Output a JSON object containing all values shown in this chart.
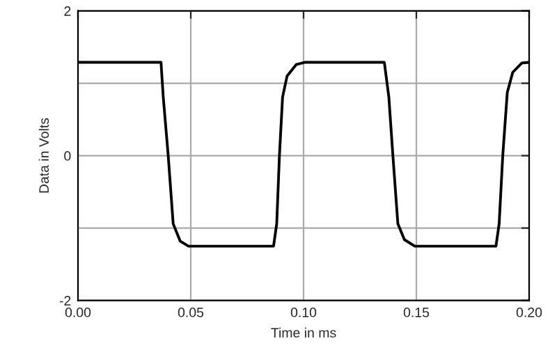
{
  "chart_data": {
    "type": "line",
    "xlabel": "Time in ms",
    "ylabel": "Data in Volts",
    "xlim": [
      0,
      0.2
    ],
    "ylim": [
      -2,
      2
    ],
    "xticks": [
      {
        "value": 0,
        "label": "0.00"
      },
      {
        "value": 0.05,
        "label": "0.05"
      },
      {
        "value": 0.1,
        "label": "0.10"
      },
      {
        "value": 0.15,
        "label": "0.15"
      },
      {
        "value": 0.2,
        "label": "0.20"
      }
    ],
    "yticks": [
      -2,
      {
        "value": -1,
        "label": null
      },
      0,
      {
        "value": 1,
        "label": null
      },
      2
    ],
    "grid": true,
    "marker": "none",
    "line_style": "solid",
    "series": [
      {
        "color": "#000000",
        "x": [
          0,
          0.0368,
          0.0378,
          0.04,
          0.0422,
          0.0453,
          0.049,
          0.0867,
          0.0881,
          0.0893,
          0.0907,
          0.0927,
          0.0968,
          0.1008,
          0.1358,
          0.1378,
          0.1396,
          0.1418,
          0.1447,
          0.1493,
          0.1853,
          0.1867,
          0.1883,
          0.1903,
          0.1927,
          0.1968,
          0.2
        ],
        "values": [
          1.29,
          1.29,
          0.81,
          0,
          -0.94,
          -1.18,
          -1.25,
          -1.25,
          -0.94,
          0,
          0.81,
          1.1,
          1.26,
          1.29,
          1.29,
          0.81,
          0,
          -0.94,
          -1.16,
          -1.25,
          -1.25,
          -0.94,
          0,
          0.87,
          1.15,
          1.28,
          1.29
        ]
      }
    ]
  }
}
